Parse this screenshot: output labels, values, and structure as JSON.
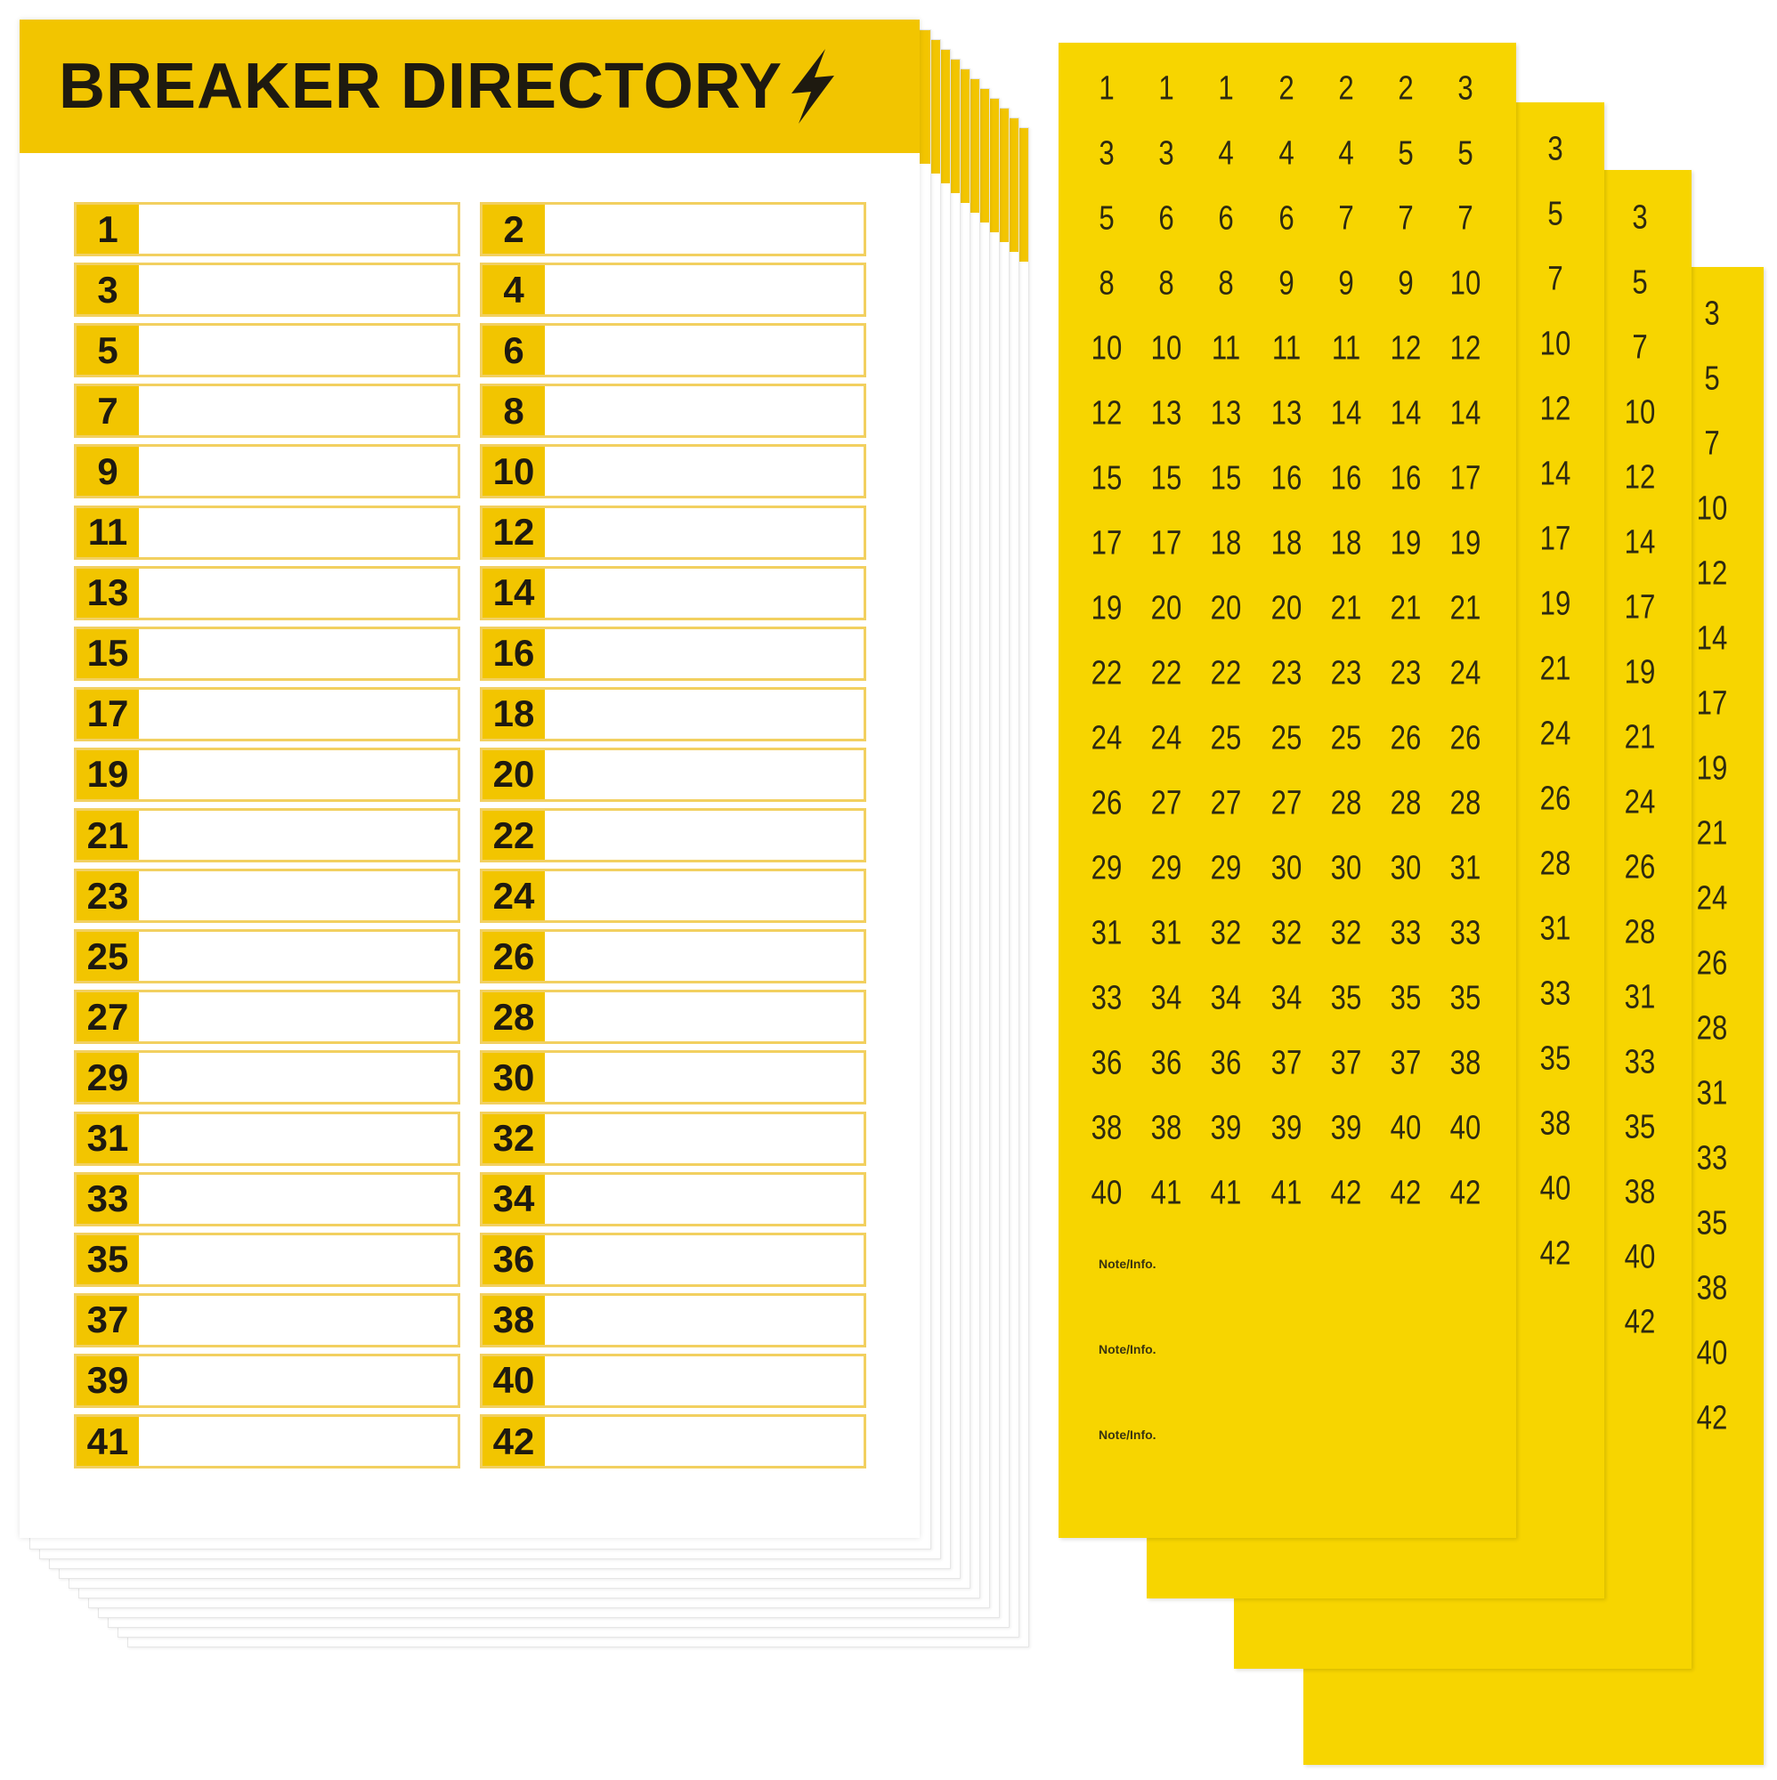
{
  "colors": {
    "directory_yellow": "#f2c500",
    "sticker_yellow": "#f7d500",
    "text": "#1e1a10"
  },
  "directory": {
    "title": "BREAKER DIRECTORY",
    "title_icon": "lightning-bolt-icon",
    "left_numbers": [
      "1",
      "3",
      "5",
      "7",
      "9",
      "11",
      "13",
      "15",
      "17",
      "19",
      "21",
      "23",
      "25",
      "27",
      "29",
      "31",
      "33",
      "35",
      "37",
      "39",
      "41"
    ],
    "right_numbers": [
      "2",
      "4",
      "6",
      "8",
      "10",
      "12",
      "14",
      "16",
      "18",
      "20",
      "22",
      "24",
      "26",
      "28",
      "30",
      "32",
      "34",
      "36",
      "38",
      "40",
      "42"
    ]
  },
  "stickers": {
    "main_grid": [
      [
        "1",
        "1",
        "1",
        "2",
        "2",
        "2",
        "3"
      ],
      [
        "3",
        "3",
        "4",
        "4",
        "4",
        "5",
        "5"
      ],
      [
        "5",
        "6",
        "6",
        "6",
        "7",
        "7",
        "7"
      ],
      [
        "8",
        "8",
        "8",
        "9",
        "9",
        "9",
        "10"
      ],
      [
        "10",
        "10",
        "11",
        "11",
        "11",
        "12",
        "12"
      ],
      [
        "12",
        "13",
        "13",
        "13",
        "14",
        "14",
        "14"
      ],
      [
        "15",
        "15",
        "15",
        "16",
        "16",
        "16",
        "17"
      ],
      [
        "17",
        "17",
        "18",
        "18",
        "18",
        "19",
        "19"
      ],
      [
        "19",
        "20",
        "20",
        "20",
        "21",
        "21",
        "21"
      ],
      [
        "22",
        "22",
        "22",
        "23",
        "23",
        "23",
        "24"
      ],
      [
        "24",
        "24",
        "25",
        "25",
        "25",
        "26",
        "26"
      ],
      [
        "26",
        "27",
        "27",
        "27",
        "28",
        "28",
        "28"
      ],
      [
        "29",
        "29",
        "29",
        "30",
        "30",
        "30",
        "31"
      ],
      [
        "31",
        "31",
        "32",
        "32",
        "32",
        "33",
        "33"
      ],
      [
        "33",
        "34",
        "34",
        "34",
        "35",
        "35",
        "35"
      ],
      [
        "36",
        "36",
        "36",
        "37",
        "37",
        "37",
        "38"
      ],
      [
        "38",
        "38",
        "39",
        "39",
        "39",
        "40",
        "40"
      ],
      [
        "40",
        "41",
        "41",
        "41",
        "42",
        "42",
        "42"
      ]
    ],
    "notes": [
      "Note/Info.",
      "Note/Info.",
      "Note/Info."
    ],
    "back_strips": [
      [
        "3",
        "5",
        "7",
        "10",
        "12",
        "14",
        "17",
        "19",
        "21",
        "24",
        "26",
        "28",
        "31",
        "33",
        "35",
        "38",
        "40",
        "42"
      ],
      [
        "3",
        "5",
        "7",
        "10",
        "12",
        "14",
        "17",
        "19",
        "21",
        "24",
        "26",
        "28",
        "31",
        "33",
        "35",
        "38",
        "40",
        "42"
      ],
      [
        "3",
        "5",
        "7",
        "10",
        "12",
        "14",
        "17",
        "19",
        "21",
        "24",
        "26",
        "28",
        "31",
        "33",
        "35",
        "38",
        "40",
        "42"
      ]
    ]
  }
}
